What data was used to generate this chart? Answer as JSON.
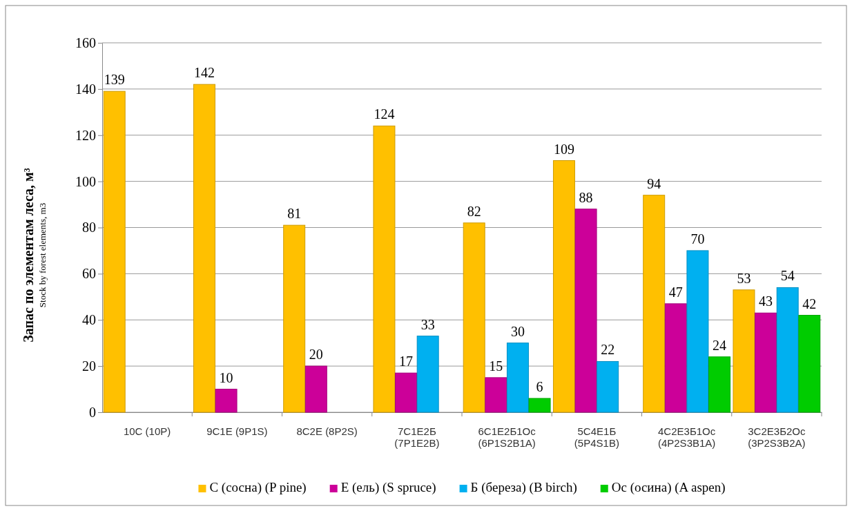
{
  "chart_data": {
    "type": "bar",
    "ylabel": "Запас по элементам леса, м³\nStock by forest elements, m3",
    "categories": [
      "10С (10P)",
      "9С1Е (9P1S)",
      "8С2Е (8P2S)",
      "7С1Е2Б (7P1E2B)",
      "6С1Е2Б1Ос (6P1S2B1A)",
      "5С4Е1Б (5P4S1B)",
      "4С2Е3Б1Ос (4P2S3B1A)",
      "3С2Е3Б2Ос (3P2S3B2A)"
    ],
    "series": [
      {
        "name": "С (сосна) (P pine)",
        "color": "#ffc000",
        "values": [
          139,
          142,
          81,
          124,
          82,
          109,
          94,
          53
        ]
      },
      {
        "name": "Е (ель) (S spruce)",
        "color": "#cc0099",
        "values": [
          null,
          10,
          20,
          17,
          15,
          88,
          47,
          43
        ]
      },
      {
        "name": "Б (береза) (B birch)",
        "color": "#00b0f0",
        "values": [
          null,
          null,
          null,
          33,
          30,
          22,
          70,
          54
        ]
      },
      {
        "name": "Ос (осина) (A aspen)",
        "color": "#00cc00",
        "values": [
          null,
          null,
          null,
          null,
          6,
          null,
          24,
          42
        ]
      }
    ],
    "ylim": [
      0,
      160
    ],
    "yticks": [
      0,
      20,
      40,
      60,
      80,
      100,
      120,
      140,
      160
    ],
    "grid": "y",
    "legend": "bottom",
    "data_labels": true
  }
}
